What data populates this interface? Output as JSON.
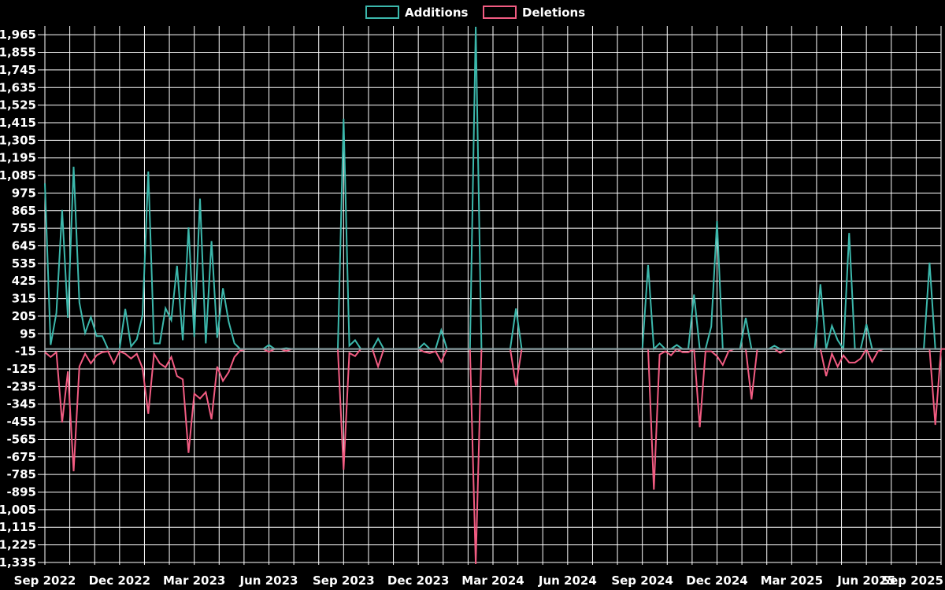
{
  "page": {
    "background": "#000000"
  },
  "legend": {
    "items": [
      {
        "label": "Additions",
        "color": "#3CB8AC"
      },
      {
        "label": "Deletions",
        "color": "#F25C82"
      }
    ]
  },
  "chart_data": {
    "type": "line",
    "title": "",
    "legend_position": "top-center",
    "grid": true,
    "grid_color": "#FFFFFF",
    "text_color": "#FFFFFF",
    "background_color": "#000000",
    "baseline_color": "#8A9CA0",
    "x_axis": {
      "tick_labels": [
        "Sep 2022",
        "Dec 2022",
        "Mar 2023",
        "Jun 2023",
        "Sep 2023",
        "Dec 2023",
        "Mar 2024",
        "Jun 2024",
        "Sep 2024",
        "Dec 2024",
        "Mar 2025",
        "Jun 2025",
        "Sep 2025"
      ],
      "tick_weeks": [
        0,
        13,
        26,
        39,
        52,
        65,
        78,
        91,
        104,
        117,
        130,
        143,
        156
      ],
      "total_weeks": 156,
      "month_gridline_count": 36
    },
    "y_axis": {
      "tick_labels": [
        "1,965",
        "1,855",
        "1,745",
        "1,635",
        "1,525",
        "1,415",
        "1,305",
        "1,195",
        "1,085",
        "975",
        "865",
        "755",
        "645",
        "535",
        "425",
        "315",
        "205",
        "95",
        "-15",
        "-125",
        "-235",
        "-345",
        "-455",
        "-565",
        "-675",
        "-785",
        "-895",
        "-1,005",
        "-1,115",
        "-1,225",
        "-1,335"
      ],
      "tick_values": [
        1965,
        1855,
        1745,
        1635,
        1525,
        1415,
        1305,
        1195,
        1085,
        975,
        865,
        755,
        645,
        535,
        425,
        315,
        205,
        95,
        -15,
        -125,
        -235,
        -345,
        -455,
        -565,
        -675,
        -785,
        -895,
        -1005,
        -1115,
        -1225,
        -1335
      ],
      "axis_min": -1350,
      "axis_max": 2020
    },
    "series": [
      {
        "name": "Additions",
        "color": "#3CB8AC",
        "values": [
          1035,
          25,
          225,
          870,
          195,
          1140,
          290,
          100,
          200,
          80,
          80,
          0,
          0,
          0,
          250,
          15,
          60,
          210,
          1110,
          35,
          35,
          255,
          180,
          520,
          55,
          760,
          75,
          940,
          35,
          675,
          70,
          380,
          170,
          35,
          0,
          0,
          0,
          0,
          0,
          25,
          0,
          0,
          5,
          0,
          0,
          0,
          0,
          0,
          0,
          0,
          0,
          0,
          1440,
          20,
          55,
          0,
          0,
          0,
          65,
          0,
          0,
          0,
          0,
          0,
          0,
          0,
          35,
          0,
          0,
          117,
          0,
          0,
          0,
          0,
          0,
          2015,
          0,
          0,
          0,
          0,
          0,
          0,
          253,
          0,
          0,
          0,
          0,
          0,
          0,
          0,
          0,
          0,
          0,
          0,
          0,
          0,
          0,
          0,
          0,
          0,
          0,
          0,
          0,
          0,
          0,
          525,
          0,
          35,
          0,
          0,
          25,
          0,
          0,
          340,
          0,
          0,
          140,
          800,
          0,
          0,
          0,
          0,
          195,
          0,
          0,
          0,
          0,
          20,
          0,
          0,
          0,
          0,
          0,
          0,
          0,
          405,
          0,
          145,
          55,
          0,
          725,
          0,
          0,
          155,
          0,
          0,
          0,
          0,
          0,
          0,
          0,
          0,
          0,
          0,
          540,
          0,
          0
        ]
      },
      {
        "name": "Deletions",
        "color": "#F25C82",
        "values": [
          -20,
          -50,
          -20,
          -460,
          -140,
          -765,
          -110,
          -30,
          -90,
          -40,
          -20,
          -15,
          -90,
          -15,
          -30,
          -60,
          -30,
          -120,
          -405,
          -30,
          -90,
          -115,
          -50,
          -170,
          -190,
          -650,
          -280,
          -310,
          -270,
          -440,
          -110,
          -200,
          -145,
          -50,
          -10,
          0,
          0,
          0,
          0,
          -18,
          0,
          0,
          -13,
          0,
          0,
          0,
          0,
          0,
          0,
          0,
          0,
          0,
          -755,
          -25,
          -45,
          0,
          0,
          0,
          -110,
          0,
          0,
          0,
          0,
          0,
          0,
          0,
          -18,
          -26,
          -15,
          -80,
          0,
          0,
          0,
          0,
          0,
          -1345,
          0,
          0,
          0,
          0,
          0,
          0,
          -230,
          0,
          0,
          0,
          0,
          0,
          0,
          0,
          0,
          0,
          0,
          0,
          0,
          0,
          0,
          0,
          0,
          0,
          0,
          0,
          0,
          0,
          0,
          0,
          -880,
          -35,
          -15,
          -40,
          0,
          -20,
          -20,
          0,
          -490,
          -15,
          -15,
          -45,
          -100,
          -15,
          0,
          0,
          0,
          -315,
          0,
          0,
          0,
          0,
          -25,
          0,
          0,
          0,
          0,
          0,
          0,
          0,
          -170,
          -30,
          -110,
          -40,
          -85,
          -85,
          -60,
          0,
          -80,
          -15,
          0,
          0,
          0,
          0,
          0,
          0,
          0,
          0,
          0,
          -475,
          0,
          0
        ]
      }
    ]
  }
}
